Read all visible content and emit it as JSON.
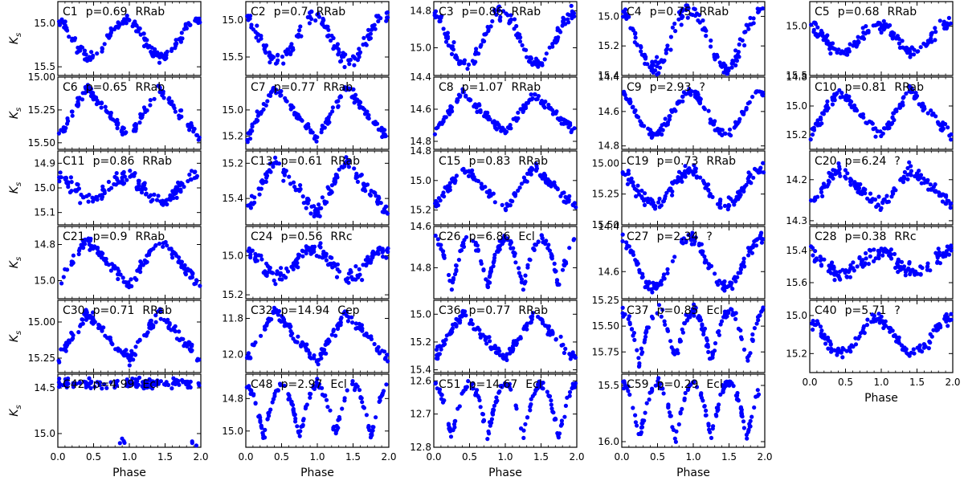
{
  "figure": {
    "xlabel": "Phase",
    "ylabel_main": "K",
    "ylabel_sub": "s",
    "point_color": "#0000ff",
    "xticks": [
      "0.0",
      "0.5",
      "1.0",
      "1.5",
      "2.0"
    ]
  },
  "chart_data": [
    {
      "type": "scatter",
      "name": "C1",
      "period": "p=0.69",
      "class": "RRab",
      "xlim": [
        0,
        2
      ],
      "ylim": [
        15.6,
        14.75
      ],
      "yticks": [
        "15.0",
        "15.5"
      ],
      "shape": "sin",
      "amp": 0.22,
      "noise": 0.05
    },
    {
      "type": "scatter",
      "name": "C2",
      "period": "p=0.7",
      "class": "RRab",
      "xlim": [
        0,
        2
      ],
      "ylim": [
        15.75,
        14.75
      ],
      "yticks": [
        "15.0",
        "15.5"
      ],
      "shape": "sin",
      "amp": 0.3,
      "noise": 0.07
    },
    {
      "type": "scatter",
      "name": "C3",
      "period": "p=0.86",
      "class": "RRab",
      "xlim": [
        0,
        2
      ],
      "ylim": [
        15.15,
        14.75
      ],
      "yticks": [
        "14.8",
        "15.0"
      ],
      "shape": "sin",
      "amp": 0.14,
      "noise": 0.03
    },
    {
      "type": "scatter",
      "name": "C4",
      "period": "p=0.75",
      "class": "RRab",
      "xlim": [
        0,
        2
      ],
      "ylim": [
        15.4,
        14.9
      ],
      "yticks": [
        "15.0",
        "15.2",
        "15.4"
      ],
      "shape": "sin",
      "amp": 0.2,
      "noise": 0.04
    },
    {
      "type": "scatter",
      "name": "C5",
      "period": "p=0.68",
      "class": "RRab",
      "xlim": [
        0,
        2
      ],
      "ylim": [
        15.5,
        14.75
      ],
      "yticks": [
        "15.0",
        "15.5"
      ],
      "shape": "sin",
      "amp": 0.15,
      "noise": 0.05
    },
    {
      "type": "scatter",
      "name": "C6",
      "period": "p=0.65",
      "class": "RRab",
      "xlim": [
        0,
        2
      ],
      "ylim": [
        15.55,
        15.0
      ],
      "yticks": [
        "15.00",
        "15.25",
        "15.50"
      ],
      "shape": "saw",
      "amp": 0.2,
      "noise": 0.03
    },
    {
      "type": "scatter",
      "name": "C7",
      "period": "p=0.77",
      "class": "RRab",
      "xlim": [
        0,
        2
      ],
      "ylim": [
        15.3,
        14.75
      ],
      "yticks": [
        "15.0",
        "15.2"
      ],
      "shape": "saw",
      "amp": 0.2,
      "noise": 0.03
    },
    {
      "type": "scatter",
      "name": "C8",
      "period": "p=1.07",
      "class": "RRab",
      "xlim": [
        0,
        2
      ],
      "ylim": [
        14.85,
        14.4
      ],
      "yticks": [
        "14.4",
        "14.6",
        "14.8"
      ],
      "shape": "saw",
      "amp": 0.12,
      "noise": 0.02
    },
    {
      "type": "scatter",
      "name": "C9",
      "period": "p=2.93",
      "class": "?",
      "xlim": [
        0,
        2
      ],
      "ylim": [
        14.82,
        14.4
      ],
      "yticks": [
        "14.4",
        "14.6",
        "14.8"
      ],
      "shape": "sin",
      "amp": 0.12,
      "noise": 0.02
    },
    {
      "type": "scatter",
      "name": "C10",
      "period": "p=0.81",
      "class": "RRab",
      "xlim": [
        0,
        2
      ],
      "ylim": [
        15.3,
        14.8
      ],
      "yticks": [
        "14.8",
        "15.0",
        "15.2"
      ],
      "shape": "saw",
      "amp": 0.16,
      "noise": 0.03
    },
    {
      "type": "scatter",
      "name": "C11",
      "period": "p=0.86",
      "class": "RRab",
      "xlim": [
        0,
        2
      ],
      "ylim": [
        15.15,
        14.85
      ],
      "yticks": [
        "14.9",
        "15.0",
        "15.1"
      ],
      "shape": "sin",
      "amp": 0.05,
      "noise": 0.025
    },
    {
      "type": "scatter",
      "name": "C13",
      "period": "p=0.61",
      "class": "RRab",
      "xlim": [
        0,
        2
      ],
      "ylim": [
        15.55,
        15.13
      ],
      "yticks": [
        "15.2",
        "15.4"
      ],
      "shape": "saw",
      "amp": 0.15,
      "noise": 0.03
    },
    {
      "type": "scatter",
      "name": "C15",
      "period": "p=0.83",
      "class": "RRab",
      "xlim": [
        0,
        2
      ],
      "ylim": [
        15.3,
        14.8
      ],
      "yticks": [
        "14.8",
        "15.0",
        "15.2"
      ],
      "shape": "saw",
      "amp": 0.14,
      "noise": 0.025
    },
    {
      "type": "scatter",
      "name": "C19",
      "period": "p=0.73",
      "class": "RRab",
      "xlim": [
        0,
        2
      ],
      "ylim": [
        15.5,
        14.9
      ],
      "yticks": [
        "15.00",
        "15.25",
        "15.50"
      ],
      "shape": "sin",
      "amp": 0.14,
      "noise": 0.04
    },
    {
      "type": "scatter",
      "name": "C20",
      "period": "p=6.24",
      "class": "?",
      "xlim": [
        0,
        2
      ],
      "ylim": [
        14.31,
        14.13
      ],
      "yticks": [
        "14.2",
        "14.3"
      ],
      "shape": "saw",
      "amp": 0.045,
      "noise": 0.012
    },
    {
      "type": "scatter",
      "name": "C21",
      "period": "p=0.9",
      "class": "RRab",
      "xlim": [
        0,
        2
      ],
      "ylim": [
        15.1,
        14.7
      ],
      "yticks": [
        "14.8",
        "15.0"
      ],
      "shape": "saw",
      "amp": 0.13,
      "noise": 0.025
    },
    {
      "type": "scatter",
      "name": "C24",
      "period": "p=0.56",
      "class": "RRc",
      "xlim": [
        0,
        2
      ],
      "ylim": [
        15.22,
        14.85
      ],
      "yticks": [
        "15.0",
        "15.2"
      ],
      "shape": "sin",
      "amp": 0.07,
      "noise": 0.03
    },
    {
      "type": "scatter",
      "name": "C26",
      "period": "p=6.86",
      "class": "Ecl",
      "xlim": [
        0,
        2
      ],
      "ylim": [
        14.95,
        14.6
      ],
      "yticks": [
        "14.6",
        "14.8"
      ],
      "shape": "ecl",
      "amp": 0.12,
      "noise": 0.02
    },
    {
      "type": "scatter",
      "name": "C27",
      "period": "p=2.34",
      "class": "?",
      "xlim": [
        0,
        2
      ],
      "ylim": [
        14.72,
        14.4
      ],
      "yticks": [
        "14.4",
        "14.6"
      ],
      "shape": "sin",
      "amp": 0.11,
      "noise": 0.02
    },
    {
      "type": "scatter",
      "name": "C28",
      "period": "p=0.38",
      "class": "RRc",
      "xlim": [
        0,
        2
      ],
      "ylim": [
        15.7,
        15.25
      ],
      "yticks": [
        "15.4",
        "15.6"
      ],
      "shape": "sin",
      "amp": 0.07,
      "noise": 0.04
    },
    {
      "type": "scatter",
      "name": "C30",
      "period": "p=0.71",
      "class": "RRab",
      "xlim": [
        0,
        2
      ],
      "ylim": [
        15.35,
        14.85
      ],
      "yticks": [
        "15.00",
        "15.25"
      ],
      "shape": "saw",
      "amp": 0.16,
      "noise": 0.03
    },
    {
      "type": "scatter",
      "name": "C32",
      "period": "p=14.94",
      "class": "Cep",
      "xlim": [
        0,
        2
      ],
      "ylim": [
        12.1,
        11.7
      ],
      "yticks": [
        "11.8",
        "12.0"
      ],
      "shape": "saw",
      "amp": 0.14,
      "noise": 0.025
    },
    {
      "type": "scatter",
      "name": "C36",
      "period": "p=0.77",
      "class": "RRab",
      "xlim": [
        0,
        2
      ],
      "ylim": [
        15.42,
        14.9
      ],
      "yticks": [
        "15.0",
        "15.2",
        "15.4"
      ],
      "shape": "saw",
      "amp": 0.16,
      "noise": 0.03
    },
    {
      "type": "scatter",
      "name": "C37",
      "period": "p=0.85",
      "class": "Ecl",
      "xlim": [
        0,
        2
      ],
      "ylim": [
        15.95,
        15.25
      ],
      "yticks": [
        "15.25",
        "15.50",
        "15.75"
      ],
      "shape": "ecl",
      "amp": 0.25,
      "noise": 0.05
    },
    {
      "type": "scatter",
      "name": "C40",
      "period": "p=5.71",
      "class": "?",
      "xlim": [
        0,
        2
      ],
      "ylim": [
        15.3,
        14.92
      ],
      "yticks": [
        "15.0",
        "15.2"
      ],
      "shape": "sin",
      "amp": 0.09,
      "noise": 0.025
    },
    {
      "type": "scatter",
      "name": "C42",
      "period": "p=4.99",
      "class": "Ecl",
      "xlim": [
        0,
        2
      ],
      "ylim": [
        15.15,
        14.35
      ],
      "yticks": [
        "14.5",
        "15.0"
      ],
      "shape": "dip",
      "amp": 0.35,
      "noise": 0.04
    },
    {
      "type": "scatter",
      "name": "C48",
      "period": "p=2.97",
      "class": "Ecl",
      "xlim": [
        0,
        2
      ],
      "ylim": [
        15.1,
        14.65
      ],
      "yticks": [
        "14.8",
        "15.0"
      ],
      "shape": "ecl",
      "amp": 0.16,
      "noise": 0.02
    },
    {
      "type": "scatter",
      "name": "C51",
      "period": "p=14.67",
      "class": "Ecl",
      "xlim": [
        0,
        2
      ],
      "ylim": [
        12.8,
        12.58
      ],
      "yticks": [
        "12.6",
        "12.7",
        "12.8"
      ],
      "shape": "ecl",
      "amp": 0.08,
      "noise": 0.01
    },
    {
      "type": "scatter",
      "name": "C59",
      "period": "p=0.29",
      "class": "Ecl",
      "xlim": [
        0,
        2
      ],
      "ylim": [
        16.05,
        15.4
      ],
      "yticks": [
        "15.5",
        "16.0"
      ],
      "shape": "ecl",
      "amp": 0.25,
      "noise": 0.03
    }
  ]
}
